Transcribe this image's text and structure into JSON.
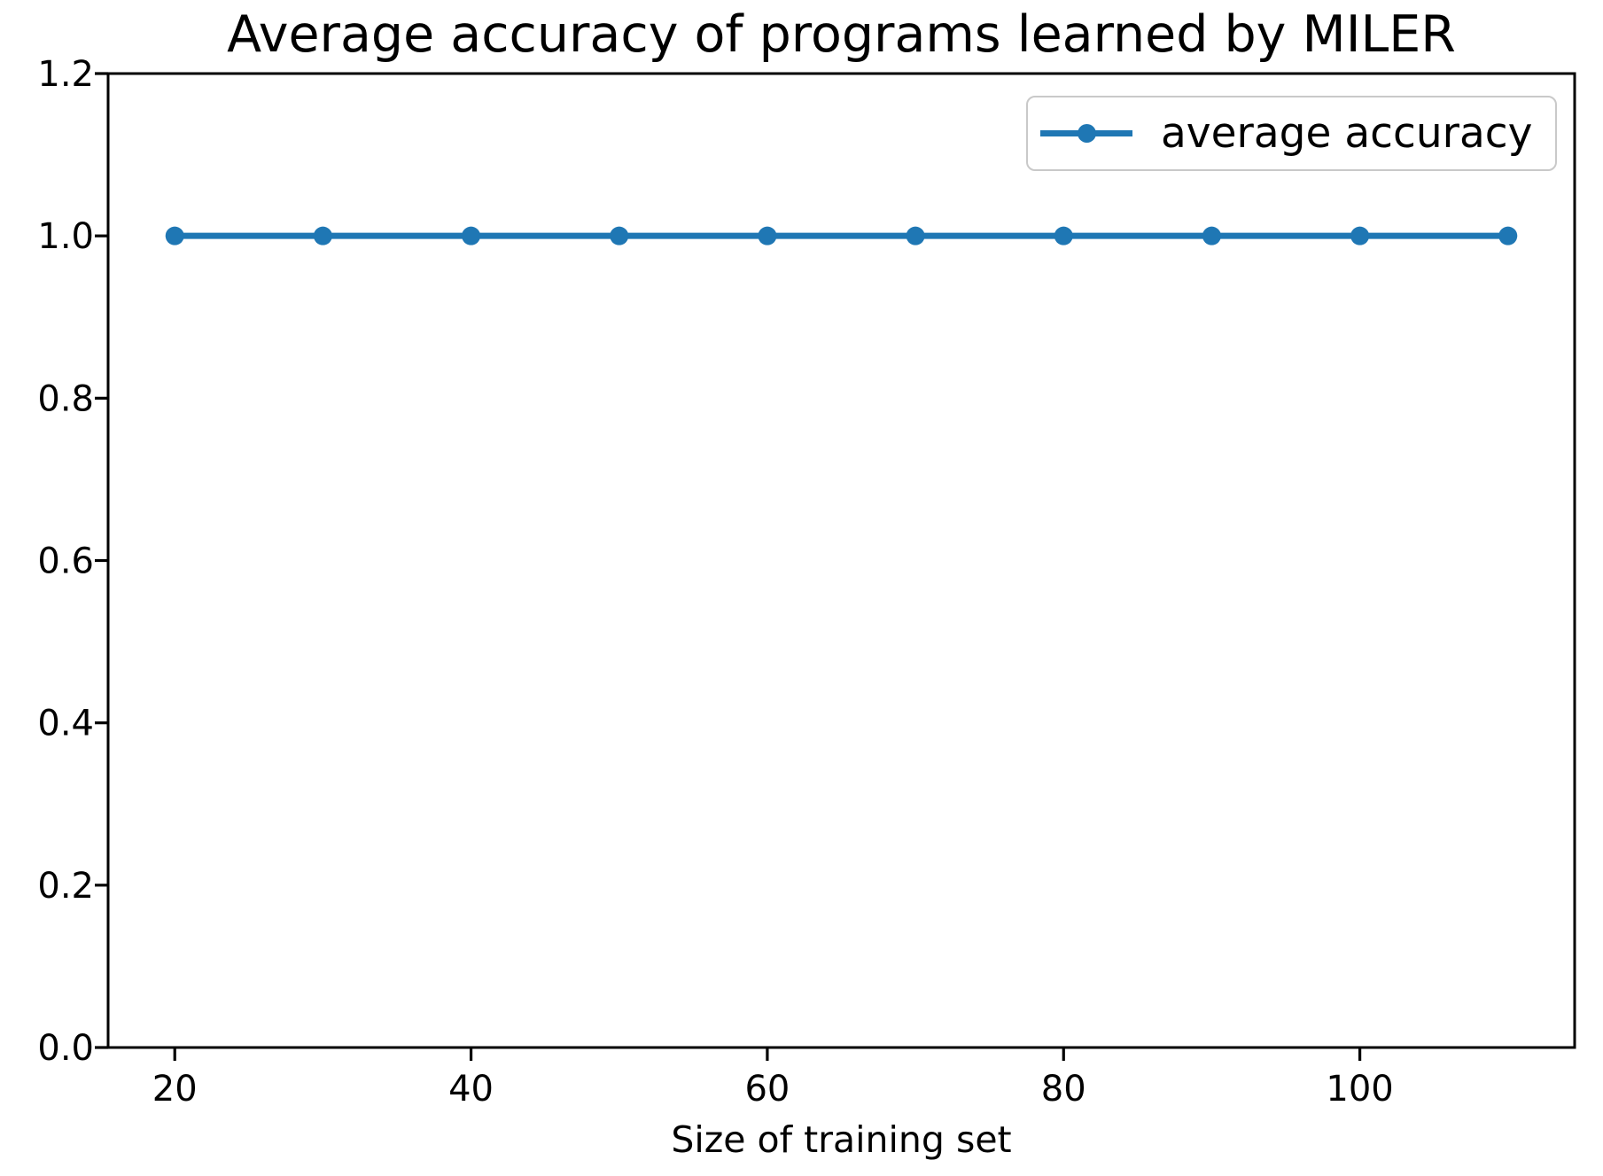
{
  "colors": {
    "line": "#1f77b4",
    "text": "#000000",
    "legend_border": "#c9c9c9",
    "background": "#ffffff",
    "axes": "#000000"
  },
  "chart_data": {
    "type": "line",
    "title": "Average accuracy of programs learned by MILER",
    "xlabel": "Size of training set",
    "ylabel": "",
    "x": [
      20,
      30,
      40,
      50,
      60,
      70,
      80,
      90,
      100,
      110
    ],
    "series": [
      {
        "name": "average accuracy",
        "values": [
          1.0,
          1.0,
          1.0,
          1.0,
          1.0,
          1.0,
          1.0,
          1.0,
          1.0,
          1.0
        ]
      }
    ],
    "xlim": [
      15.5,
      114.5
    ],
    "ylim": [
      0.0,
      1.2
    ],
    "xticks": [
      20,
      40,
      60,
      80,
      100
    ],
    "yticks": [
      0.0,
      0.2,
      0.4,
      0.6,
      0.8,
      1.0,
      1.2
    ],
    "ytick_decimals": 1,
    "grid": false,
    "marker": "o",
    "line_color": "#1f77b4",
    "legend_position": "upper right"
  }
}
